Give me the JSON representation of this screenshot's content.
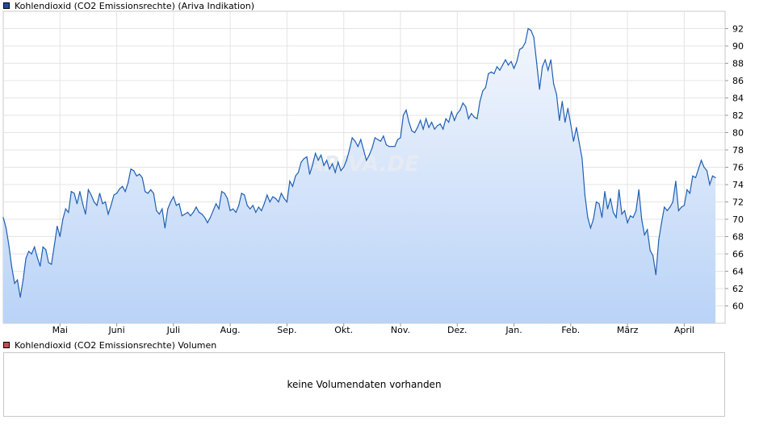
{
  "legend": {
    "price_label": "Kohlendioxid (CO2 Emissionsrechte) (Ariva Indikation)",
    "price_color": "#1f4e9c",
    "volume_label": "Kohlendioxid (CO2 Emissionsrechte) Volumen",
    "volume_color": "#c0504d"
  },
  "watermark": "ARIVA.DE",
  "volume_panel": {
    "message": "keine Volumendaten vorhanden"
  },
  "colors": {
    "line": "#1f5fb4",
    "fill_top": "#f4f7fd",
    "fill_bottom": "#b9d3f7",
    "grid": "#e4e4e4",
    "frame": "#c8c8c8"
  },
  "chart_data": {
    "type": "area",
    "ylim": [
      58,
      94
    ],
    "y_ticks": [
      60,
      62,
      64,
      66,
      68,
      70,
      72,
      74,
      76,
      78,
      80,
      82,
      84,
      86,
      88,
      90,
      92
    ],
    "y_axis_position": "right",
    "x_ticks": [
      {
        "label": "Mai",
        "x": 1.0
      },
      {
        "label": "Juni",
        "x": 2.0
      },
      {
        "label": "Juli",
        "x": 3.0
      },
      {
        "label": "Aug.",
        "x": 4.0
      },
      {
        "label": "Sep.",
        "x": 5.0
      },
      {
        "label": "Okt.",
        "x": 6.0
      },
      {
        "label": "Nov.",
        "x": 7.0
      },
      {
        "label": "Dez.",
        "x": 8.0
      },
      {
        "label": "Jan.",
        "x": 9.0
      },
      {
        "label": "Feb.",
        "x": 10.0
      },
      {
        "label": "März",
        "x": 11.0
      },
      {
        "label": "April",
        "x": 12.0
      }
    ],
    "xlim": [
      0.0,
      12.72
    ],
    "grid": true,
    "series": [
      {
        "values": [
          [
            0.0,
            70.2
          ],
          [
            0.05,
            69.0
          ],
          [
            0.1,
            67.0
          ],
          [
            0.15,
            64.5
          ],
          [
            0.2,
            62.6
          ],
          [
            0.25,
            63.0
          ],
          [
            0.3,
            61.0
          ],
          [
            0.35,
            63.0
          ],
          [
            0.4,
            65.5
          ],
          [
            0.45,
            66.3
          ],
          [
            0.5,
            66.0
          ],
          [
            0.55,
            66.8
          ],
          [
            0.6,
            65.6
          ],
          [
            0.65,
            64.6
          ],
          [
            0.7,
            66.8
          ],
          [
            0.75,
            66.5
          ],
          [
            0.8,
            65.0
          ],
          [
            0.85,
            64.8
          ],
          [
            0.9,
            67.0
          ],
          [
            0.95,
            69.2
          ],
          [
            1.0,
            68.0
          ],
          [
            1.05,
            70.0
          ],
          [
            1.1,
            71.2
          ],
          [
            1.15,
            70.8
          ],
          [
            1.2,
            73.2
          ],
          [
            1.25,
            73.0
          ],
          [
            1.3,
            71.8
          ],
          [
            1.35,
            73.2
          ],
          [
            1.4,
            71.8
          ],
          [
            1.45,
            70.6
          ],
          [
            1.5,
            73.4
          ],
          [
            1.55,
            72.8
          ],
          [
            1.6,
            72.0
          ],
          [
            1.65,
            71.6
          ],
          [
            1.7,
            73.0
          ],
          [
            1.75,
            71.8
          ],
          [
            1.8,
            72.0
          ],
          [
            1.85,
            70.6
          ],
          [
            1.9,
            71.6
          ],
          [
            1.95,
            72.8
          ],
          [
            2.0,
            73.0
          ],
          [
            2.05,
            73.5
          ],
          [
            2.1,
            73.8
          ],
          [
            2.15,
            73.2
          ],
          [
            2.2,
            74.2
          ],
          [
            2.25,
            75.8
          ],
          [
            2.3,
            75.6
          ],
          [
            2.35,
            75.0
          ],
          [
            2.4,
            75.2
          ],
          [
            2.45,
            74.8
          ],
          [
            2.5,
            73.2
          ],
          [
            2.55,
            73.0
          ],
          [
            2.6,
            73.4
          ],
          [
            2.65,
            73.0
          ],
          [
            2.7,
            71.0
          ],
          [
            2.75,
            70.6
          ],
          [
            2.8,
            71.2
          ],
          [
            2.85,
            69.0
          ],
          [
            2.9,
            71.2
          ],
          [
            2.95,
            72.0
          ],
          [
            3.0,
            72.6
          ],
          [
            3.05,
            71.6
          ],
          [
            3.1,
            71.8
          ],
          [
            3.15,
            70.4
          ],
          [
            3.2,
            70.6
          ],
          [
            3.25,
            70.8
          ],
          [
            3.3,
            70.4
          ],
          [
            3.35,
            70.8
          ],
          [
            3.4,
            71.4
          ],
          [
            3.45,
            70.8
          ],
          [
            3.5,
            70.6
          ],
          [
            3.55,
            70.2
          ],
          [
            3.6,
            69.6
          ],
          [
            3.65,
            70.2
          ],
          [
            3.7,
            71.0
          ],
          [
            3.75,
            71.8
          ],
          [
            3.8,
            71.2
          ],
          [
            3.85,
            73.2
          ],
          [
            3.9,
            73.0
          ],
          [
            3.95,
            72.4
          ],
          [
            4.0,
            71.0
          ],
          [
            4.05,
            71.2
          ],
          [
            4.1,
            70.8
          ],
          [
            4.15,
            71.6
          ],
          [
            4.2,
            73.0
          ],
          [
            4.25,
            72.8
          ],
          [
            4.3,
            71.6
          ],
          [
            4.35,
            71.2
          ],
          [
            4.4,
            71.6
          ],
          [
            4.45,
            70.8
          ],
          [
            4.5,
            71.4
          ],
          [
            4.55,
            71.0
          ],
          [
            4.6,
            71.8
          ],
          [
            4.65,
            72.8
          ],
          [
            4.7,
            72.0
          ],
          [
            4.75,
            72.6
          ],
          [
            4.8,
            72.4
          ],
          [
            4.85,
            72.0
          ],
          [
            4.9,
            73.0
          ],
          [
            4.95,
            72.4
          ],
          [
            5.0,
            72.0
          ],
          [
            5.05,
            74.4
          ],
          [
            5.1,
            73.8
          ],
          [
            5.15,
            75.0
          ],
          [
            5.2,
            75.4
          ],
          [
            5.25,
            76.6
          ],
          [
            5.3,
            77.0
          ],
          [
            5.35,
            77.2
          ],
          [
            5.4,
            75.2
          ],
          [
            5.45,
            76.2
          ],
          [
            5.5,
            77.6
          ],
          [
            5.55,
            76.8
          ],
          [
            5.6,
            77.4
          ],
          [
            5.65,
            76.2
          ],
          [
            5.7,
            76.8
          ],
          [
            5.75,
            75.8
          ],
          [
            5.8,
            76.4
          ],
          [
            5.85,
            75.4
          ],
          [
            5.9,
            76.6
          ],
          [
            5.95,
            75.6
          ],
          [
            6.0,
            76.0
          ],
          [
            6.05,
            76.8
          ],
          [
            6.1,
            78.0
          ],
          [
            6.15,
            79.4
          ],
          [
            6.2,
            79.0
          ],
          [
            6.25,
            78.4
          ],
          [
            6.3,
            79.2
          ],
          [
            6.35,
            78.0
          ],
          [
            6.4,
            76.8
          ],
          [
            6.45,
            77.4
          ],
          [
            6.5,
            78.2
          ],
          [
            6.55,
            79.4
          ],
          [
            6.6,
            79.2
          ],
          [
            6.65,
            79.0
          ],
          [
            6.7,
            79.6
          ],
          [
            6.75,
            78.6
          ],
          [
            6.8,
            78.4
          ],
          [
            6.85,
            78.4
          ],
          [
            6.9,
            78.4
          ],
          [
            6.95,
            79.2
          ],
          [
            7.0,
            79.4
          ],
          [
            7.05,
            82.0
          ],
          [
            7.1,
            82.6
          ],
          [
            7.15,
            81.2
          ],
          [
            7.2,
            80.2
          ],
          [
            7.25,
            80.0
          ],
          [
            7.3,
            80.6
          ],
          [
            7.35,
            81.4
          ],
          [
            7.4,
            80.4
          ],
          [
            7.45,
            81.6
          ],
          [
            7.5,
            80.6
          ],
          [
            7.55,
            81.2
          ],
          [
            7.6,
            80.4
          ],
          [
            7.65,
            80.8
          ],
          [
            7.7,
            81.0
          ],
          [
            7.75,
            80.4
          ],
          [
            7.8,
            81.6
          ],
          [
            7.85,
            81.2
          ],
          [
            7.9,
            82.4
          ],
          [
            7.95,
            81.4
          ],
          [
            8.0,
            82.2
          ],
          [
            8.05,
            82.6
          ],
          [
            8.1,
            83.4
          ],
          [
            8.15,
            83.0
          ],
          [
            8.2,
            81.6
          ],
          [
            8.25,
            82.2
          ],
          [
            8.3,
            81.8
          ],
          [
            8.35,
            81.6
          ],
          [
            8.4,
            83.6
          ],
          [
            8.45,
            84.8
          ],
          [
            8.5,
            85.2
          ],
          [
            8.55,
            86.8
          ],
          [
            8.6,
            87.0
          ],
          [
            8.65,
            86.8
          ],
          [
            8.7,
            87.6
          ],
          [
            8.75,
            87.2
          ],
          [
            8.8,
            87.8
          ],
          [
            8.85,
            88.4
          ],
          [
            8.9,
            87.8
          ],
          [
            8.95,
            88.2
          ],
          [
            9.0,
            87.4
          ],
          [
            9.05,
            88.2
          ],
          [
            9.1,
            89.6
          ],
          [
            9.15,
            89.8
          ],
          [
            9.2,
            90.4
          ],
          [
            9.25,
            92.0
          ],
          [
            9.3,
            91.8
          ],
          [
            9.35,
            91.0
          ],
          [
            9.4,
            88.0
          ],
          [
            9.45,
            85.0
          ],
          [
            9.5,
            87.6
          ],
          [
            9.55,
            88.4
          ],
          [
            9.6,
            87.2
          ],
          [
            9.65,
            88.4
          ],
          [
            9.7,
            85.6
          ],
          [
            9.75,
            84.4
          ],
          [
            9.8,
            81.4
          ],
          [
            9.85,
            83.6
          ],
          [
            9.9,
            81.2
          ],
          [
            9.95,
            82.8
          ],
          [
            10.0,
            81.0
          ],
          [
            10.05,
            79.0
          ],
          [
            10.1,
            80.6
          ],
          [
            10.15,
            78.8
          ],
          [
            10.2,
            77.0
          ],
          [
            10.25,
            72.8
          ],
          [
            10.3,
            70.2
          ],
          [
            10.35,
            69.0
          ],
          [
            10.4,
            70.0
          ],
          [
            10.45,
            72.0
          ],
          [
            10.5,
            71.8
          ],
          [
            10.55,
            70.2
          ],
          [
            10.6,
            73.2
          ],
          [
            10.65,
            71.2
          ],
          [
            10.7,
            72.4
          ],
          [
            10.75,
            70.8
          ],
          [
            10.8,
            70.2
          ],
          [
            10.85,
            73.4
          ],
          [
            10.9,
            70.6
          ],
          [
            10.95,
            71.0
          ],
          [
            11.0,
            69.6
          ],
          [
            11.05,
            70.4
          ],
          [
            11.1,
            70.2
          ],
          [
            11.15,
            71.0
          ],
          [
            11.2,
            73.4
          ],
          [
            11.25,
            70.0
          ],
          [
            11.3,
            68.2
          ],
          [
            11.35,
            68.8
          ],
          [
            11.4,
            66.4
          ],
          [
            11.45,
            65.8
          ],
          [
            11.5,
            63.6
          ],
          [
            11.55,
            67.6
          ],
          [
            11.6,
            69.6
          ],
          [
            11.65,
            71.4
          ],
          [
            11.7,
            71.0
          ],
          [
            11.75,
            71.4
          ],
          [
            11.8,
            72.0
          ],
          [
            11.85,
            74.4
          ],
          [
            11.9,
            71.0
          ],
          [
            11.95,
            71.4
          ],
          [
            12.0,
            71.6
          ],
          [
            12.05,
            73.4
          ],
          [
            12.1,
            73.0
          ],
          [
            12.15,
            75.0
          ],
          [
            12.2,
            74.8
          ],
          [
            12.25,
            75.8
          ],
          [
            12.3,
            76.8
          ],
          [
            12.35,
            76.0
          ],
          [
            12.4,
            75.6
          ],
          [
            12.45,
            74.0
          ],
          [
            12.5,
            75.0
          ],
          [
            12.55,
            74.8
          ]
        ]
      }
    ]
  }
}
